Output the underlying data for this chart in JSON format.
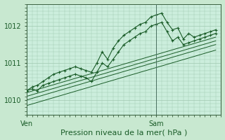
{
  "background_color": "#c8e8d0",
  "plot_bg_color": "#cceedd",
  "grid_color": "#a0c8b0",
  "line_color": "#1a5c28",
  "xlabel": "Pression niveau de la mer( hPa )",
  "ylim": [
    1009.6,
    1012.6
  ],
  "xlim": [
    0,
    36
  ],
  "yticks": [
    1010,
    1011,
    1012
  ],
  "ven_x": 0,
  "sam_x": 24,
  "series1_zigzag": [
    [
      0,
      1010.25
    ],
    [
      1,
      1010.3
    ],
    [
      2,
      1010.25
    ],
    [
      3,
      1010.4
    ],
    [
      4,
      1010.45
    ],
    [
      5,
      1010.5
    ],
    [
      6,
      1010.55
    ],
    [
      7,
      1010.6
    ],
    [
      8,
      1010.65
    ],
    [
      9,
      1010.7
    ],
    [
      10,
      1010.65
    ],
    [
      11,
      1010.6
    ],
    [
      12,
      1010.5
    ],
    [
      13,
      1010.75
    ],
    [
      14,
      1011.0
    ],
    [
      15,
      1010.9
    ],
    [
      16,
      1011.1
    ],
    [
      17,
      1011.3
    ],
    [
      18,
      1011.5
    ],
    [
      19,
      1011.6
    ],
    [
      20,
      1011.7
    ],
    [
      21,
      1011.8
    ],
    [
      22,
      1011.85
    ],
    [
      23,
      1012.0
    ],
    [
      24,
      1012.05
    ],
    [
      25,
      1012.1
    ],
    [
      26,
      1011.85
    ],
    [
      27,
      1011.6
    ],
    [
      28,
      1011.7
    ],
    [
      29,
      1011.5
    ],
    [
      30,
      1011.55
    ],
    [
      31,
      1011.6
    ],
    [
      32,
      1011.65
    ],
    [
      33,
      1011.7
    ],
    [
      34,
      1011.75
    ],
    [
      35,
      1011.8
    ]
  ],
  "series2_main": [
    [
      0,
      1010.25
    ],
    [
      1,
      1010.35
    ],
    [
      2,
      1010.4
    ],
    [
      3,
      1010.5
    ],
    [
      4,
      1010.6
    ],
    [
      5,
      1010.7
    ],
    [
      6,
      1010.75
    ],
    [
      7,
      1010.8
    ],
    [
      8,
      1010.85
    ],
    [
      9,
      1010.9
    ],
    [
      10,
      1010.85
    ],
    [
      11,
      1010.8
    ],
    [
      12,
      1010.75
    ],
    [
      13,
      1011.0
    ],
    [
      14,
      1011.3
    ],
    [
      15,
      1011.1
    ],
    [
      16,
      1011.4
    ],
    [
      17,
      1011.6
    ],
    [
      18,
      1011.75
    ],
    [
      19,
      1011.85
    ],
    [
      20,
      1011.95
    ],
    [
      21,
      1012.05
    ],
    [
      22,
      1012.1
    ],
    [
      23,
      1012.25
    ],
    [
      24,
      1012.3
    ],
    [
      25,
      1012.35
    ],
    [
      26,
      1012.1
    ],
    [
      27,
      1011.9
    ],
    [
      28,
      1011.95
    ],
    [
      29,
      1011.65
    ],
    [
      30,
      1011.8
    ],
    [
      31,
      1011.7
    ],
    [
      32,
      1011.75
    ],
    [
      33,
      1011.8
    ],
    [
      34,
      1011.85
    ],
    [
      35,
      1011.9
    ]
  ],
  "envelope_lines": [
    [
      [
        0,
        1010.2
      ],
      [
        35,
        1011.7
      ]
    ],
    [
      [
        0,
        1010.1
      ],
      [
        35,
        1011.6
      ]
    ],
    [
      [
        0,
        1010.0
      ],
      [
        35,
        1011.5
      ]
    ],
    [
      [
        0,
        1009.85
      ],
      [
        35,
        1011.35
      ]
    ]
  ],
  "ytick_fontsize": 7,
  "xlabel_fontsize": 8
}
